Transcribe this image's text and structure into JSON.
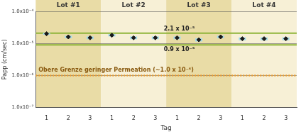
{
  "chart_data": {
    "type": "scatter",
    "x_label": "Tag",
    "y_label": "Papp (cm/sec)",
    "categories": [
      "1",
      "2",
      "3",
      "1",
      "2",
      "3",
      "1",
      "2",
      "3",
      "1",
      "2",
      "3"
    ],
    "groups": [
      "Lot #1",
      "Lot #2",
      "Lot #3",
      "Lot #4"
    ],
    "values": [
      2e-05,
      1.6e-05,
      1.5e-05,
      1.8e-05,
      1.5e-05,
      1.5e-05,
      1.5e-05,
      1.3e-05,
      1.6e-05,
      1.4e-05,
      1.4e-05,
      1.4e-05
    ],
    "errors": [
      1.5e-06,
      1.5e-06,
      1.5e-06,
      1.5e-06,
      1.5e-06,
      1.5e-06,
      1.5e-06,
      1.5e-06,
      1.5e-06,
      1.5e-06,
      1.5e-06,
      1.5e-06
    ],
    "color": "#1a1a1a",
    "marker": "diamond",
    "annotations": [
      {
        "value": 2.1e-05,
        "label": "2.1 x 10⁻⁵",
        "color": "#8fb43a",
        "line_style": "solid"
      },
      {
        "value": 9e-06,
        "label": "0.9 x 10⁻⁵",
        "color": "#8fb43a",
        "line_style": "solid"
      },
      {
        "value": 1e-06,
        "label": "Obere Grenze geringer Permeation (~1.0 x 10⁻⁶)",
        "color": "#f0a030",
        "line_style": "dotted"
      }
    ],
    "log": "y",
    "grid": true,
    "ylim": [
      1e-07,
      0.0001
    ],
    "yticks": [
      {
        "value": 1e-07,
        "label": "1.0x10⁻⁷"
      },
      {
        "value": 1e-06,
        "label": "1.0x10⁻⁶"
      },
      {
        "value": 1e-05,
        "label": "1.0x10⁻⁵"
      },
      {
        "value": 0.0001,
        "label": "1.0x10⁻⁴"
      }
    ]
  }
}
